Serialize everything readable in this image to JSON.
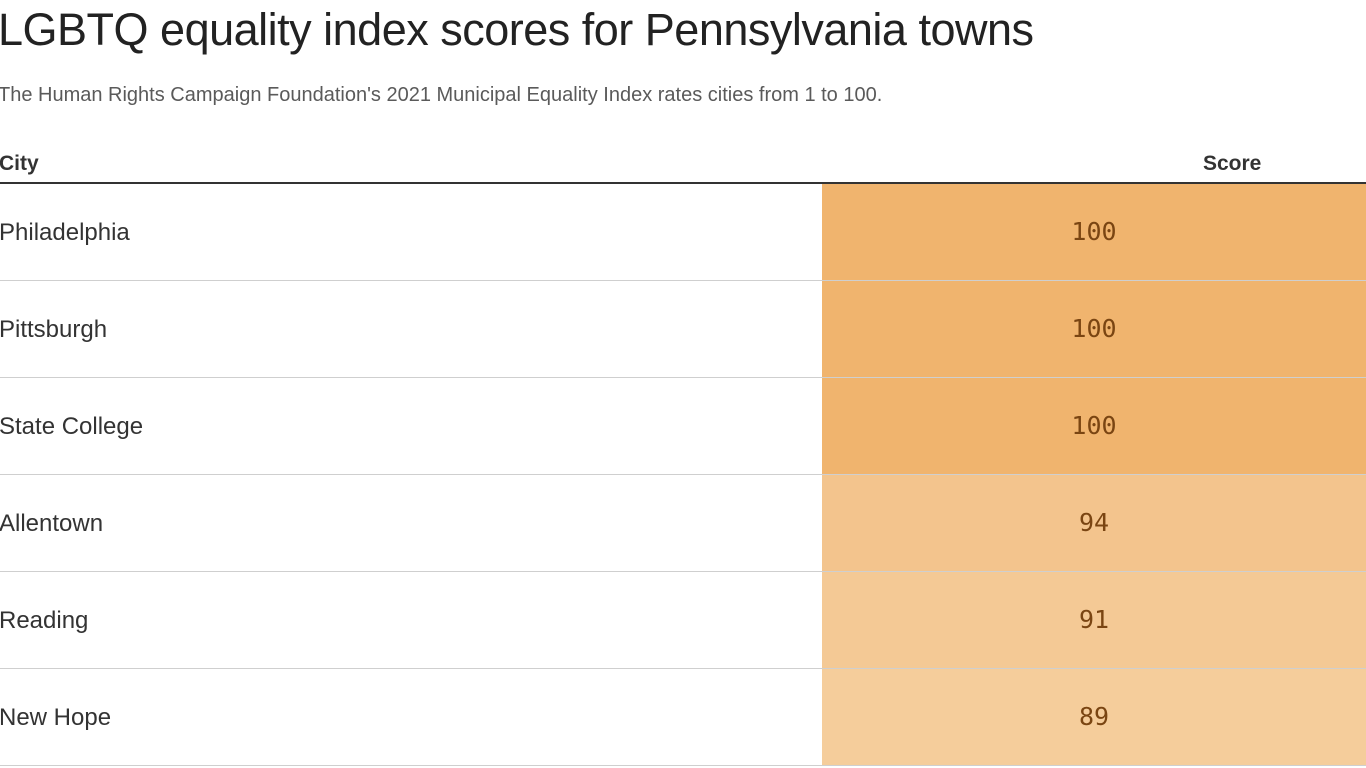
{
  "title": "LGBTQ equality index scores for Pennsylvania towns",
  "subtitle": "The Human Rights Campaign Foundation's 2021 Municipal Equality Index rates cities from 1 to 100.",
  "table": {
    "headers": {
      "city": "City",
      "score": "Score"
    }
  },
  "colors": {
    "score_100": "#f0b46e",
    "score_94": "#f3c48d",
    "score_91": "#f4c995",
    "score_89": "#f5cd9b"
  },
  "chart_data": {
    "type": "table",
    "title": "LGBTQ equality index scores for Pennsylvania towns",
    "subtitle": "The Human Rights Campaign Foundation's 2021 Municipal Equality Index rates cities from 1 to 100.",
    "columns": [
      "City",
      "Score"
    ],
    "rows": [
      {
        "city": "Philadelphia",
        "score": "100",
        "color": "#f0b46e"
      },
      {
        "city": "Pittsburgh",
        "score": "100",
        "color": "#f0b46e"
      },
      {
        "city": "State College",
        "score": "100",
        "color": "#f0b46e"
      },
      {
        "city": "Allentown",
        "score": "94",
        "color": "#f3c48d"
      },
      {
        "city": "Reading",
        "score": "91",
        "color": "#f4c995"
      },
      {
        "city": "New Hope",
        "score": "89",
        "color": "#f5cd9b"
      }
    ]
  }
}
